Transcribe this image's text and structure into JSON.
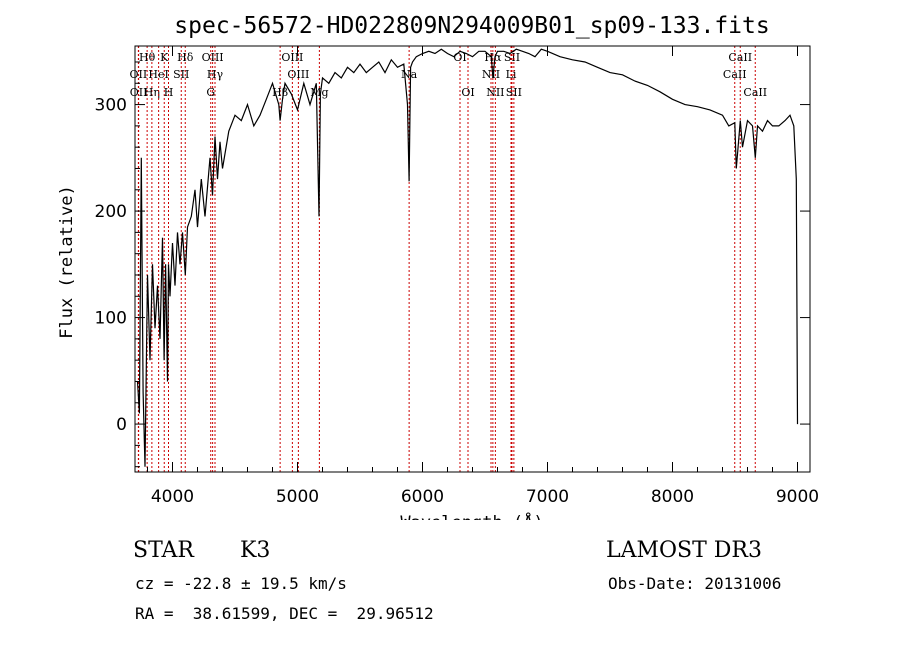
{
  "chart_data": {
    "type": "line",
    "title": "spec-56572-HD022809N294009B01_sp09-133.fits",
    "xlabel": "Wavelength (Å)",
    "ylabel": "Flux (relative)",
    "xlim": [
      3700,
      9100
    ],
    "ylim": [
      -45,
      355
    ],
    "x_ticks": [
      4000,
      5000,
      6000,
      7000,
      8000,
      9000
    ],
    "y_ticks": [
      0,
      100,
      200,
      300
    ],
    "grid": false,
    "line_color": "#000000",
    "marker_color": "#cc0000",
    "series": [
      {
        "x": [
          3720,
          3735,
          3750,
          3765,
          3780,
          3800,
          3820,
          3840,
          3860,
          3880,
          3900,
          3920,
          3933,
          3945,
          3960,
          3968,
          3980,
          4000,
          4020,
          4040,
          4060,
          4080,
          4102,
          4120,
          4150,
          4180,
          4200,
          4230,
          4260,
          4300,
          4320,
          4340,
          4360,
          4380,
          4400,
          4450,
          4500,
          4550,
          4600,
          4650,
          4700,
          4750,
          4800,
          4850,
          4861,
          4880,
          4900,
          4950,
          5000,
          5050,
          5100,
          5150,
          5172,
          5183,
          5200,
          5250,
          5300,
          5350,
          5400,
          5450,
          5500,
          5550,
          5600,
          5650,
          5700,
          5750,
          5800,
          5850,
          5880,
          5893,
          5905,
          5920,
          5950,
          6000,
          6050,
          6100,
          6150,
          6200,
          6250,
          6300,
          6350,
          6400,
          6450,
          6500,
          6550,
          6563,
          6580,
          6600,
          6650,
          6700,
          6750,
          6800,
          6850,
          6900,
          6950,
          7000,
          7100,
          7200,
          7300,
          7400,
          7500,
          7600,
          7700,
          7800,
          7900,
          8000,
          8100,
          8200,
          8300,
          8400,
          8450,
          8498,
          8510,
          8542,
          8560,
          8600,
          8640,
          8662,
          8680,
          8720,
          8760,
          8800,
          8850,
          8900,
          8940,
          8970,
          8990,
          9000
        ],
        "values": [
          40,
          10,
          250,
          30,
          -40,
          140,
          60,
          150,
          90,
          130,
          80,
          175,
          60,
          150,
          40,
          150,
          120,
          170,
          130,
          180,
          150,
          180,
          140,
          185,
          195,
          220,
          185,
          230,
          195,
          250,
          215,
          270,
          230,
          265,
          240,
          275,
          290,
          285,
          300,
          280,
          290,
          305,
          320,
          300,
          285,
          305,
          320,
          310,
          295,
          320,
          300,
          320,
          195,
          310,
          325,
          320,
          330,
          325,
          335,
          330,
          338,
          330,
          335,
          340,
          330,
          342,
          335,
          338,
          300,
          228,
          335,
          340,
          345,
          348,
          350,
          348,
          352,
          348,
          345,
          350,
          348,
          345,
          350,
          350,
          345,
          325,
          345,
          350,
          350,
          348,
          352,
          350,
          348,
          345,
          352,
          350,
          345,
          342,
          340,
          335,
          330,
          328,
          322,
          318,
          312,
          305,
          300,
          298,
          295,
          290,
          280,
          283,
          240,
          285,
          260,
          285,
          280,
          250,
          280,
          275,
          285,
          280,
          280,
          285,
          290,
          280,
          230,
          0
        ]
      }
    ],
    "line_markers": [
      {
        "label": "Hθ",
        "x": 3797,
        "row": 0
      },
      {
        "label": "OII",
        "x": 3727,
        "row": 1
      },
      {
        "label": "OII",
        "x": 3729,
        "row": 2
      },
      {
        "label": "Hη",
        "x": 3835,
        "row": 2
      },
      {
        "label": "HeI",
        "x": 3889,
        "row": 1
      },
      {
        "label": "K",
        "x": 3934,
        "row": 0
      },
      {
        "label": "H",
        "x": 3968,
        "row": 2
      },
      {
        "label": "SII",
        "x": 4070,
        "row": 1
      },
      {
        "label": "Hδ",
        "x": 4102,
        "row": 0
      },
      {
        "label": "OIII",
        "x": 4321,
        "row": 0
      },
      {
        "label": "Hγ",
        "x": 4340,
        "row": 1
      },
      {
        "label": "G",
        "x": 4306,
        "row": 2
      },
      {
        "label": "Hβ",
        "x": 4861,
        "row": 2
      },
      {
        "label": "OIII",
        "x": 4959,
        "row": 0
      },
      {
        "label": "OIII",
        "x": 5007,
        "row": 1
      },
      {
        "label": "Mg",
        "x": 5175,
        "row": 2
      },
      {
        "label": "Na",
        "x": 5893,
        "row": 1
      },
      {
        "label": "OI",
        "x": 6300,
        "row": 0
      },
      {
        "label": "OI",
        "x": 6364,
        "row": 2
      },
      {
        "label": "Hα",
        "x": 6563,
        "row": 0
      },
      {
        "label": "NII",
        "x": 6548,
        "row": 1
      },
      {
        "label": "NII",
        "x": 6583,
        "row": 2
      },
      {
        "label": "SII",
        "x": 6716,
        "row": 0
      },
      {
        "label": "Li",
        "x": 6708,
        "row": 1
      },
      {
        "label": "SII",
        "x": 6731,
        "row": 2
      },
      {
        "label": "CaII",
        "x": 8542,
        "row": 0
      },
      {
        "label": "CaII",
        "x": 8498,
        "row": 1
      },
      {
        "label": "CaII",
        "x": 8662,
        "row": 2
      }
    ]
  },
  "info": {
    "object_class": "STAR",
    "subclass": "K3",
    "survey": "LAMOST DR3",
    "redshift": "cz = -22.8 ± 19.5 km/s",
    "obs_date": "Obs-Date: 20131006",
    "coords": "RA =  38.61599, DEC =  29.96512"
  }
}
